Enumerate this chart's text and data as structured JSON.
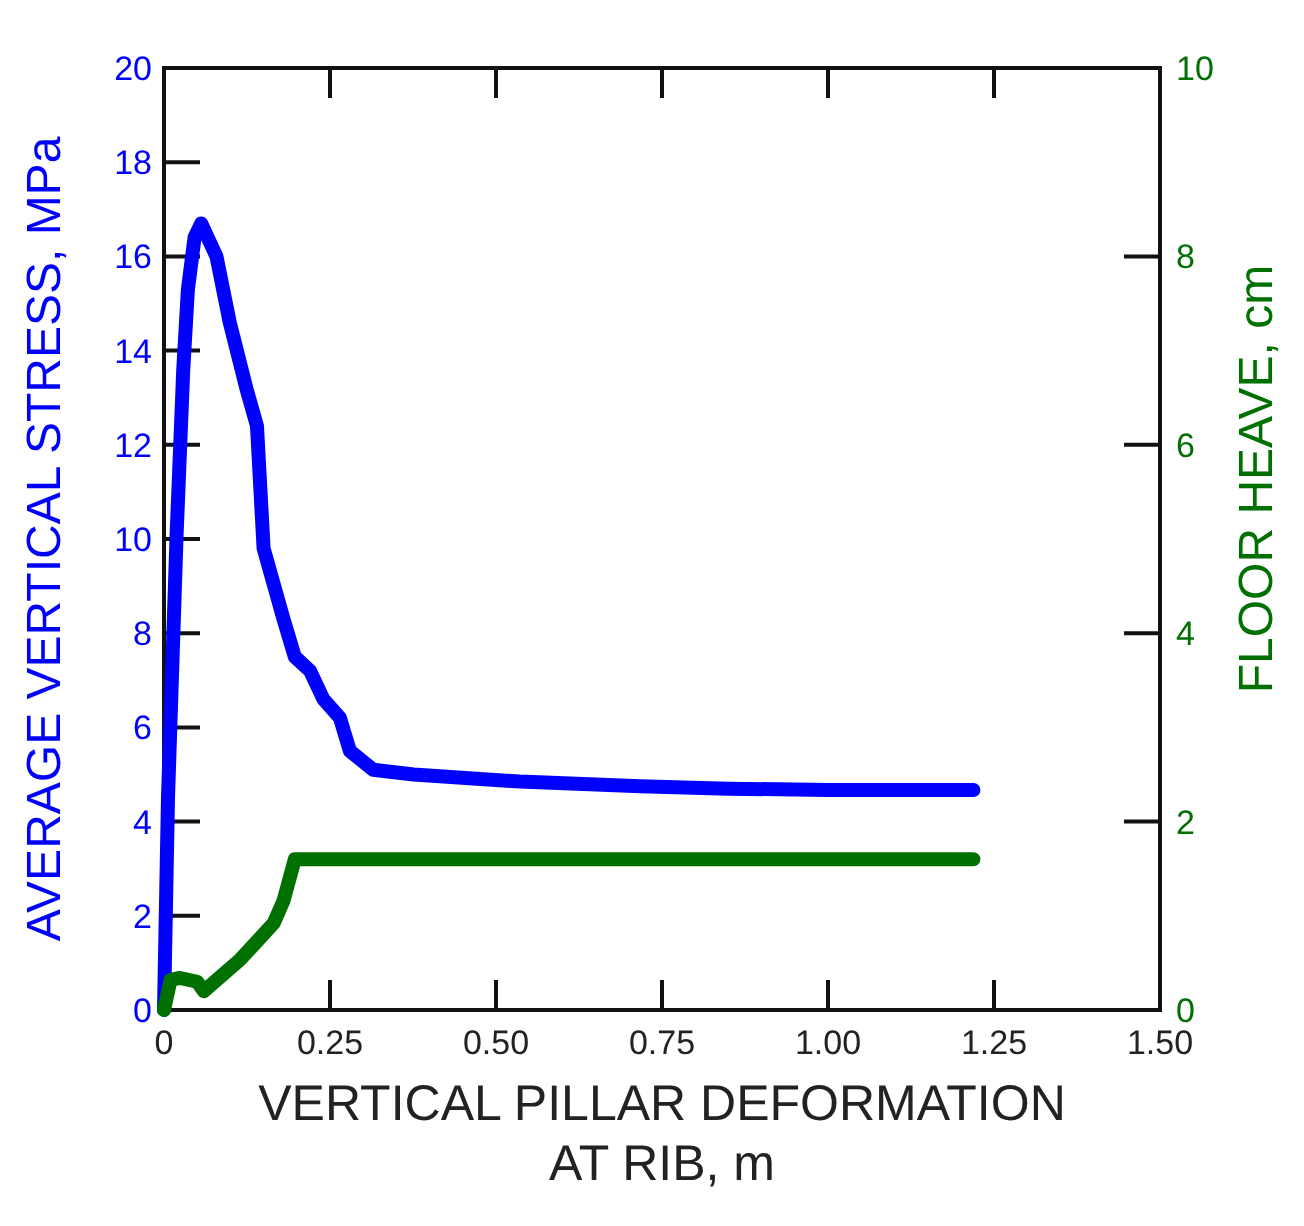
{
  "chart_data": {
    "type": "line",
    "xlabel": "VERTICAL PILLAR DEFORMATION\nAT RIB, m",
    "ylabel": "AVERAGE VERTICAL STRESS, MPa",
    "y2label": "FLOOR HEAVE, cm",
    "xlim": [
      0,
      1.5
    ],
    "xticks": [
      {
        "value": 0,
        "label": "0"
      },
      {
        "value": 0.25,
        "label": "0.25"
      },
      {
        "value": 0.5,
        "label": "0.50"
      },
      {
        "value": 0.75,
        "label": "0.75"
      },
      {
        "value": 1,
        "label": "1.00"
      },
      {
        "value": 1.25,
        "label": "1.25"
      },
      {
        "value": 1.5,
        "label": "1.50"
      }
    ],
    "ylim": [
      0,
      20
    ],
    "yticks": [
      0,
      2,
      4,
      6,
      8,
      10,
      12,
      14,
      16,
      18,
      20
    ],
    "y2lim": [
      0,
      10
    ],
    "y2ticks": [
      0,
      2,
      4,
      6,
      8,
      10
    ],
    "marker": "none",
    "line_style": "solid",
    "series": [
      {
        "color": "#0000ff",
        "x": [
          0,
          0.006,
          0.019,
          0.029,
          0.036,
          0.046,
          0.056,
          0.079,
          0.099,
          0.124,
          0.14,
          0.15,
          0.18,
          0.197,
          0.22,
          0.24,
          0.265,
          0.28,
          0.315,
          0.376,
          0.536,
          0.717,
          0.85,
          1.0,
          1.219
        ],
        "values": [
          0,
          4.5,
          10.1,
          13.6,
          15.3,
          16.4,
          16.7,
          16.0,
          14.6,
          13.2,
          12.4,
          9.8,
          8.3,
          7.5,
          7.2,
          6.6,
          6.2,
          5.5,
          5.1,
          5.0,
          4.85,
          4.75,
          4.7,
          4.67,
          4.67
        ]
      },
      {
        "color": "#007000",
        "axis": "y2",
        "x": [
          0,
          0.01,
          0.024,
          0.05,
          0.06,
          0.114,
          0.165,
          0.18,
          0.197,
          1.219
        ],
        "values": [
          0,
          0.32,
          0.34,
          0.3,
          0.2,
          0.53,
          0.92,
          1.16,
          1.6,
          1.6
        ]
      }
    ]
  }
}
